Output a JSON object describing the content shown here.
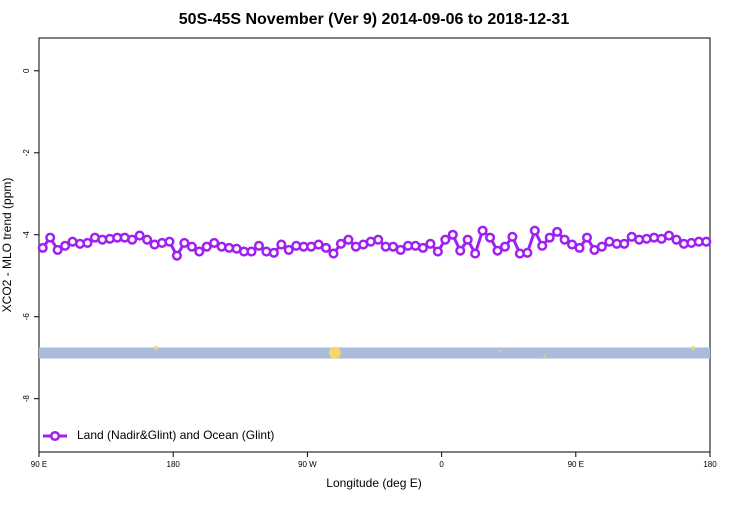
{
  "chart_data": {
    "type": "line",
    "title": "50S-45S November (Ver 9)   2014-09-06 to 2018-12-31",
    "x_label": "Longitude (deg E)",
    "y_label": "XCO2 - MLO trend (ppm)",
    "xlim": [
      90,
      540
    ],
    "xticks": [
      {
        "value": 90,
        "label": "90 E"
      },
      {
        "value": 180,
        "label": "180"
      },
      {
        "value": 270,
        "label": "90 W"
      },
      {
        "value": 360,
        "label": "0"
      },
      {
        "value": 450,
        "label": "90 E"
      },
      {
        "value": 540,
        "label": "180"
      }
    ],
    "ylim": [
      -9.3,
      0.8
    ],
    "yticks": [
      0,
      -2,
      -4,
      -6,
      -8
    ],
    "legend": "bottom-left",
    "band": {
      "y": [
        -7.02,
        -6.75
      ],
      "color": "#a9bcdb"
    },
    "markers": {
      "color": "#f5d66b",
      "x": [
        168.5,
        288.5,
        399,
        429,
        528.6
      ],
      "y": [
        -6.76,
        -6.88,
        -6.83,
        -6.97,
        -6.76
      ],
      "size": [
        2,
        6,
        1,
        1,
        2
      ]
    },
    "series": [
      {
        "name": "Land (Nadir&Glint) and Ocean (Glint)",
        "color": "#a020f0",
        "x": [
          92.5,
          97.5,
          102.5,
          107.5,
          112.5,
          117.5,
          122.5,
          127.5,
          132.5,
          137.5,
          142.5,
          147.5,
          152.5,
          157.5,
          162.5,
          167.5,
          172.5,
          177.5,
          182.5,
          187.5,
          192.5,
          197.5,
          202.5,
          207.5,
          212.5,
          217.5,
          222.5,
          227.5,
          232.5,
          237.5,
          242.5,
          247.5,
          252.5,
          257.5,
          262.5,
          267.5,
          272.5,
          277.5,
          282.5,
          287.5,
          292.5,
          297.5,
          302.5,
          307.5,
          312.5,
          317.5,
          322.5,
          327.5,
          332.5,
          337.5,
          342.5,
          347.5,
          352.5,
          357.5,
          362.5,
          367.5,
          372.5,
          377.5,
          382.5,
          387.5,
          392.5,
          397.5,
          402.5,
          407.5,
          412.5,
          417.5,
          422.5,
          427.5,
          432.5,
          437.5,
          442.5,
          447.5,
          452.5,
          457.5,
          462.5,
          467.5,
          472.5,
          477.5,
          482.5,
          487.5,
          492.5,
          497.5,
          502.5,
          507.5,
          512.5,
          517.5,
          522.5,
          527.5,
          532.5,
          537.5
        ],
        "values": [
          -4.32,
          -4.07,
          -4.37,
          -4.27,
          -4.17,
          -4.22,
          -4.2,
          -4.07,
          -4.12,
          -4.1,
          -4.07,
          -4.07,
          -4.12,
          -4.02,
          -4.12,
          -4.24,
          -4.2,
          -4.17,
          -4.51,
          -4.2,
          -4.29,
          -4.41,
          -4.29,
          -4.2,
          -4.29,
          -4.32,
          -4.34,
          -4.41,
          -4.41,
          -4.27,
          -4.41,
          -4.44,
          -4.24,
          -4.37,
          -4.27,
          -4.29,
          -4.29,
          -4.24,
          -4.32,
          -4.46,
          -4.22,
          -4.12,
          -4.29,
          -4.24,
          -4.17,
          -4.12,
          -4.29,
          -4.29,
          -4.37,
          -4.27,
          -4.27,
          -4.32,
          -4.22,
          -4.41,
          -4.12,
          -4.0,
          -4.39,
          -4.12,
          -4.46,
          -3.9,
          -4.07,
          -4.39,
          -4.29,
          -4.05,
          -4.46,
          -4.44,
          -3.9,
          -4.27,
          -4.07,
          -3.93,
          -4.12,
          -4.24,
          -4.32,
          -4.07,
          -4.37,
          -4.29,
          -4.17,
          -4.22,
          -4.22,
          -4.05,
          -4.12,
          -4.1,
          -4.07,
          -4.1,
          -4.02,
          -4.12,
          -4.22,
          -4.2,
          -4.17,
          -4.17
        ]
      }
    ]
  }
}
